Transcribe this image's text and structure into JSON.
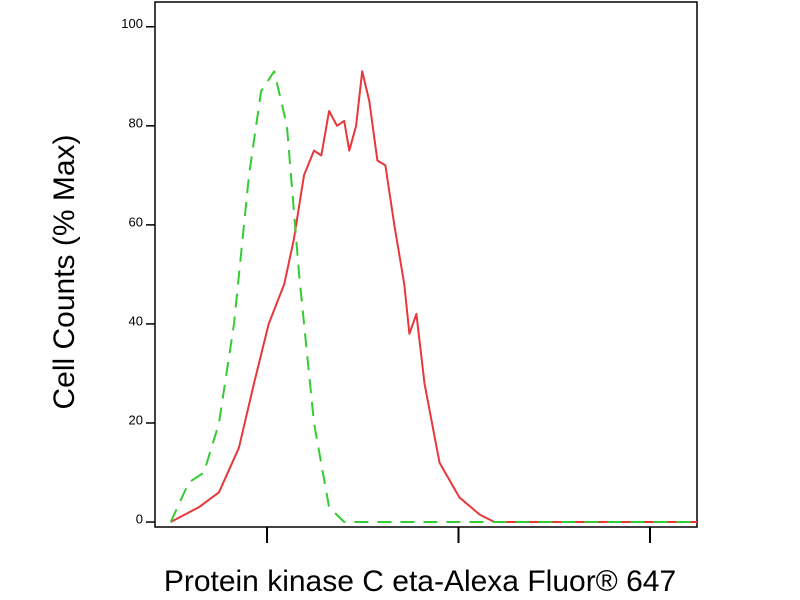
{
  "chart_data": {
    "type": "line",
    "x_label": "Protein kinase C eta-Alexa Fluor® 647",
    "y_label": "Cell Counts (% Max)",
    "x_log": true,
    "xlim": [
      2.6,
      1760
    ],
    "xticks": [
      10,
      100,
      1000
    ],
    "ylim": [
      -1,
      105
    ],
    "yticks": [
      0,
      20,
      40,
      60,
      80,
      100
    ],
    "series": [
      {
        "color": "#e8373a",
        "dash": false,
        "x": [
          3.14,
          4.41,
          5.61,
          7.13,
          8.55,
          10.2,
          12.3,
          13.8,
          15.6,
          17.6,
          19.2,
          21.1,
          23.2,
          25.3,
          26.9,
          29.2,
          31.4,
          34.2,
          37.7,
          41.5,
          46.2,
          52.1,
          55.4,
          60.3,
          66.4,
          79.6,
          101,
          129,
          154,
          1760
        ],
        "values": [
          0,
          3,
          6,
          15,
          28,
          40,
          48,
          57,
          70,
          75,
          74,
          83,
          80,
          81,
          75,
          80,
          91,
          85,
          73,
          72,
          60,
          48,
          38,
          42,
          28,
          12,
          5,
          1.5,
          0,
          0
        ]
      },
      {
        "color": "#33cc33",
        "dash": true,
        "x": [
          3.14,
          3.91,
          4.68,
          5.61,
          6.72,
          8.05,
          9.31,
          10.9,
          12.7,
          14.7,
          17.6,
          21.1,
          25.3,
          1760
        ],
        "values": [
          0,
          8,
          10,
          20,
          40,
          70,
          87,
          91,
          80,
          50,
          20,
          3,
          0,
          0
        ]
      }
    ]
  }
}
